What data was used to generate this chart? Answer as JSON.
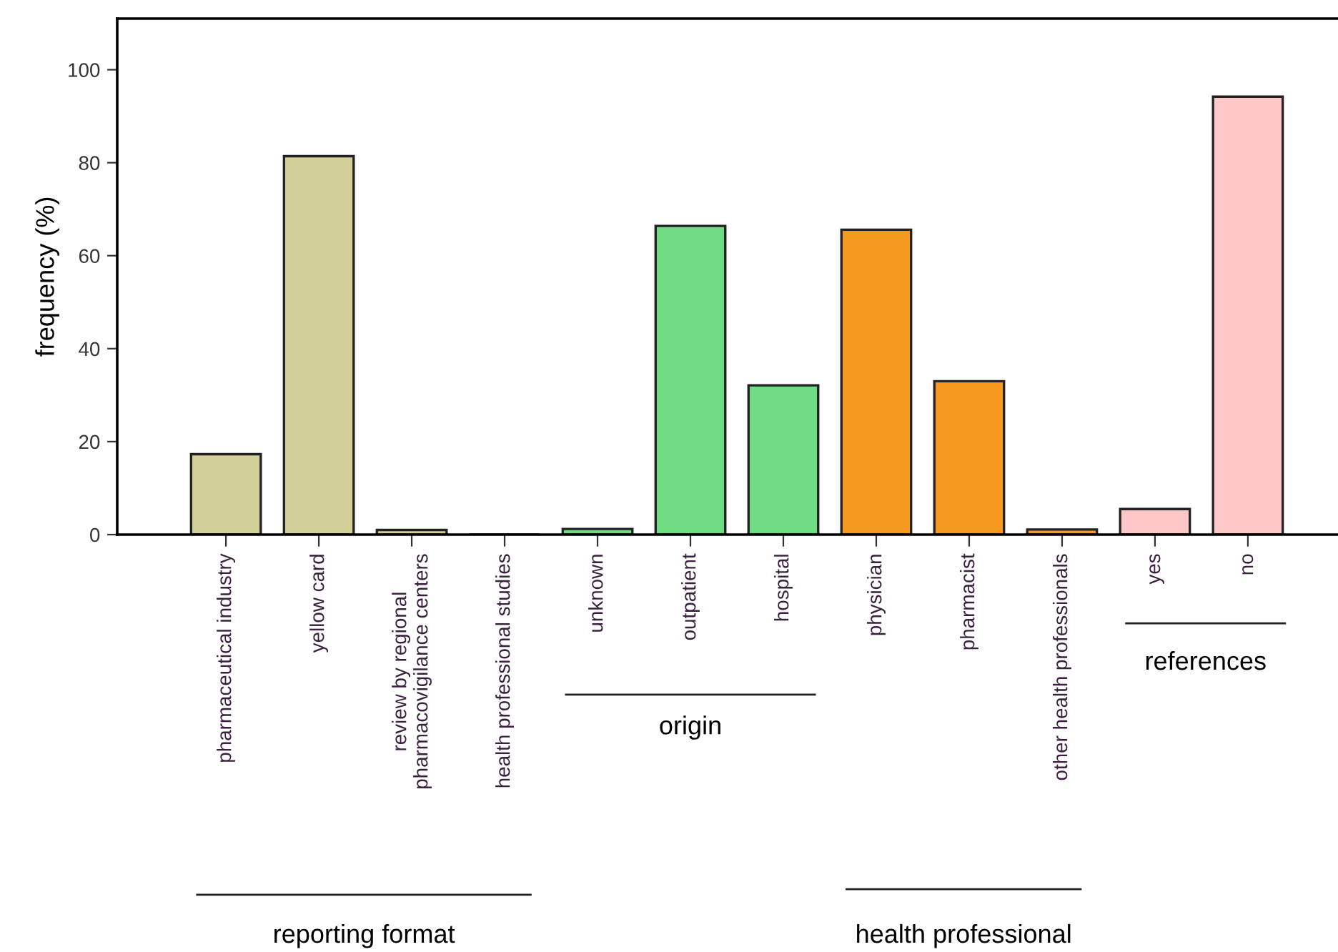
{
  "chart_data": {
    "type": "bar",
    "ylabel": "frequency (%)",
    "categories": [
      "pharmaceutical industry",
      "yellow card",
      "review by regional\npharmacovigilance centers",
      "health professional studies",
      "unknown",
      "outpatient",
      "hospital",
      "physician",
      "pharmacist",
      "other health professionals",
      "yes",
      "no"
    ],
    "values": [
      17.3,
      81.4,
      1,
      0,
      1.2,
      66.4,
      32.1,
      65.6,
      33,
      1.1,
      5.5,
      94.2
    ],
    "colors": [
      "#d3cf98",
      "#d3cf98",
      "#d3cf98",
      "#222222",
      "#6fdc84",
      "#6fdc84",
      "#6fdc84",
      "#f7991f",
      "#f7991f",
      "#f7991f",
      "#fec8c8",
      "#fec8c8"
    ],
    "ylim": [
      0,
      111
    ],
    "yticks": [
      0,
      20,
      40,
      60,
      80,
      100
    ],
    "grid": false,
    "legend": false,
    "annotations": [
      "reporting format",
      "origin",
      "health professional",
      "references"
    ]
  }
}
